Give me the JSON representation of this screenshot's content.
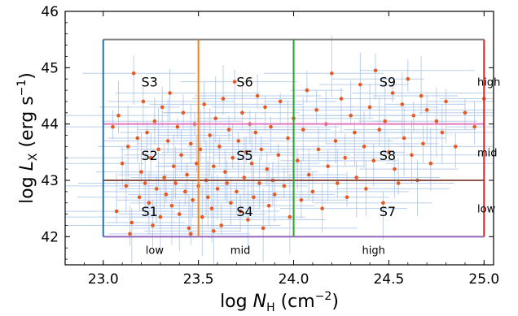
{
  "chart_data": {
    "type": "scatter",
    "title": "",
    "xlabel": "log N_H (cm^-2)",
    "ylabel": "log L_X (erg s^-1)",
    "xlim": [
      22.8,
      25.05
    ],
    "ylim": [
      41.5,
      46.0
    ],
    "xticks": [
      23.0,
      23.5,
      24.0,
      24.5,
      25.0
    ],
    "yticks": [
      42,
      43,
      44,
      45,
      46
    ],
    "xtick_labels": [
      "23.0",
      "23.5",
      "24.0",
      "24.5",
      "25.0"
    ],
    "ytick_labels": [
      "42",
      "43",
      "44",
      "45",
      "46"
    ],
    "grid": false,
    "legend": "none",
    "colors": {
      "points": "#e8581f",
      "errorbars": "#aec7e8",
      "blue_line": "#1f77b4",
      "orange_line": "#ff7f0e",
      "green_line": "#2ca02c",
      "red_line": "#d62728",
      "purple_line": "#9467bd",
      "brown_line": "#8c564b",
      "pink_line": "#e377c2",
      "gray_line": "#7f7f7f"
    },
    "boundaries": {
      "vertical": [
        {
          "x": 23.0,
          "y_range": [
            42.0,
            45.5
          ],
          "color": "#1f77b4"
        },
        {
          "x": 23.5,
          "y_range": [
            42.0,
            45.5
          ],
          "color": "#ff7f0e"
        },
        {
          "x": 24.0,
          "y_range": [
            42.0,
            45.5
          ],
          "color": "#2ca02c"
        },
        {
          "x": 25.0,
          "y_range": [
            42.0,
            45.5
          ],
          "color": "#d62728"
        }
      ],
      "horizontal": [
        {
          "y": 42.0,
          "x_range": [
            23.0,
            25.0
          ],
          "color": "#9467bd"
        },
        {
          "y": 43.0,
          "x_range": [
            23.0,
            25.0
          ],
          "color": "#8c564b"
        },
        {
          "y": 44.0,
          "x_range": [
            23.0,
            25.0
          ],
          "color": "#e377c2"
        },
        {
          "y": 45.5,
          "x_range": [
            23.0,
            25.0
          ],
          "color": "#7f7f7f"
        }
      ]
    },
    "region_labels": [
      {
        "text": "S1",
        "x": 23.2,
        "y": 42.45
      },
      {
        "text": "S2",
        "x": 23.2,
        "y": 43.45
      },
      {
        "text": "S3",
        "x": 23.2,
        "y": 44.75
      },
      {
        "text": "S4",
        "x": 23.7,
        "y": 42.45
      },
      {
        "text": "S5",
        "x": 23.7,
        "y": 43.45
      },
      {
        "text": "S6",
        "x": 23.7,
        "y": 44.75
      },
      {
        "text": "S7",
        "x": 24.45,
        "y": 42.45
      },
      {
        "text": "S8",
        "x": 24.45,
        "y": 43.45
      },
      {
        "text": "S9",
        "x": 24.45,
        "y": 44.75
      }
    ],
    "x_bin_labels": [
      {
        "text": "low",
        "x": 23.27,
        "y": 41.75
      },
      {
        "text": "mid",
        "x": 23.72,
        "y": 41.75
      },
      {
        "text": "high",
        "x": 24.42,
        "y": 41.75
      }
    ],
    "y_bin_labels": [
      {
        "text": "high",
        "y": 44.75
      },
      {
        "text": "mid",
        "y": 43.5
      },
      {
        "text": "low",
        "y": 42.5
      }
    ],
    "series": [
      {
        "points": [
          [
            23.05,
            43.95
          ],
          [
            23.07,
            42.45
          ],
          [
            23.08,
            44.15
          ],
          [
            23.1,
            43.3
          ],
          [
            23.12,
            42.9
          ],
          [
            23.13,
            43.6
          ],
          [
            23.15,
            42.25
          ],
          [
            23.16,
            44.9
          ],
          [
            23.18,
            43.75
          ],
          [
            23.19,
            42.7
          ],
          [
            23.2,
            43.15
          ],
          [
            23.21,
            44.4
          ],
          [
            23.22,
            42.95
          ],
          [
            23.23,
            43.85
          ],
          [
            23.24,
            42.6
          ],
          [
            23.25,
            43.4
          ],
          [
            23.27,
            44.05
          ],
          [
            23.28,
            42.85
          ],
          [
            23.29,
            43.55
          ],
          [
            23.3,
            42.35
          ],
          [
            23.31,
            44.3
          ],
          [
            23.32,
            43.05
          ],
          [
            23.33,
            42.75
          ],
          [
            23.34,
            43.7
          ],
          [
            23.35,
            44.55
          ],
          [
            23.36,
            42.55
          ],
          [
            23.37,
            43.25
          ],
          [
            23.38,
            42.95
          ],
          [
            23.39,
            43.95
          ],
          [
            23.4,
            42.4
          ],
          [
            23.41,
            43.45
          ],
          [
            23.42,
            44.2
          ],
          [
            23.43,
            42.8
          ],
          [
            23.44,
            43.1
          ],
          [
            23.45,
            42.15
          ],
          [
            23.46,
            43.65
          ],
          [
            23.47,
            42.65
          ],
          [
            23.48,
            44.0
          ],
          [
            23.49,
            43.3
          ],
          [
            23.5,
            42.9
          ],
          [
            23.51,
            43.55
          ],
          [
            23.52,
            42.35
          ],
          [
            23.53,
            44.35
          ],
          [
            23.54,
            43.0
          ],
          [
            23.55,
            42.7
          ],
          [
            23.56,
            43.8
          ],
          [
            23.57,
            42.5
          ],
          [
            23.58,
            43.25
          ],
          [
            23.59,
            44.1
          ],
          [
            23.6,
            42.85
          ],
          [
            23.61,
            43.6
          ],
          [
            23.62,
            42.2
          ],
          [
            23.63,
            44.45
          ],
          [
            23.64,
            43.15
          ],
          [
            23.65,
            42.95
          ],
          [
            23.66,
            43.9
          ],
          [
            23.67,
            42.6
          ],
          [
            23.68,
            43.4
          ],
          [
            23.69,
            44.75
          ],
          [
            23.7,
            42.8
          ],
          [
            23.71,
            43.7
          ],
          [
            23.72,
            42.45
          ],
          [
            23.73,
            44.2
          ],
          [
            23.74,
            43.05
          ],
          [
            23.75,
            43.5
          ],
          [
            23.76,
            42.3
          ],
          [
            23.77,
            44.0
          ],
          [
            23.78,
            43.3
          ],
          [
            23.79,
            42.7
          ],
          [
            23.8,
            43.85
          ],
          [
            23.81,
            44.5
          ],
          [
            23.82,
            42.95
          ],
          [
            23.83,
            43.55
          ],
          [
            23.84,
            42.15
          ],
          [
            23.85,
            44.3
          ],
          [
            23.86,
            43.2
          ],
          [
            23.87,
            42.55
          ],
          [
            23.88,
            43.95
          ],
          [
            23.89,
            43.0
          ],
          [
            23.9,
            42.75
          ],
          [
            23.92,
            43.45
          ],
          [
            23.93,
            44.4
          ],
          [
            23.95,
            42.9
          ],
          [
            23.97,
            43.75
          ],
          [
            23.98,
            42.35
          ],
          [
            24.0,
            44.1
          ],
          [
            24.02,
            43.35
          ],
          [
            24.04,
            42.65
          ],
          [
            24.05,
            43.9
          ],
          [
            24.07,
            44.6
          ],
          [
            24.08,
            43.1
          ],
          [
            24.1,
            42.8
          ],
          [
            24.12,
            44.25
          ],
          [
            24.13,
            43.55
          ],
          [
            24.15,
            42.5
          ],
          [
            24.17,
            44.0
          ],
          [
            24.18,
            43.25
          ],
          [
            24.2,
            44.9
          ],
          [
            24.22,
            43.7
          ],
          [
            24.23,
            42.95
          ],
          [
            24.25,
            44.45
          ],
          [
            24.27,
            43.4
          ],
          [
            24.28,
            42.7
          ],
          [
            24.3,
            44.15
          ],
          [
            24.32,
            43.85
          ],
          [
            24.33,
            43.05
          ],
          [
            24.35,
            44.7
          ],
          [
            24.37,
            43.6
          ],
          [
            24.38,
            42.85
          ],
          [
            24.4,
            44.3
          ],
          [
            24.42,
            43.35
          ],
          [
            24.43,
            44.95
          ],
          [
            24.45,
            43.9
          ],
          [
            24.47,
            42.6
          ],
          [
            24.48,
            44.05
          ],
          [
            24.5,
            43.5
          ],
          [
            24.52,
            44.55
          ],
          [
            24.53,
            43.2
          ],
          [
            24.55,
            42.95
          ],
          [
            24.57,
            44.35
          ],
          [
            24.58,
            43.75
          ],
          [
            24.6,
            44.8
          ],
          [
            24.62,
            43.45
          ],
          [
            24.63,
            44.15
          ],
          [
            24.65,
            43.0
          ],
          [
            24.67,
            44.5
          ],
          [
            24.68,
            43.65
          ],
          [
            24.7,
            44.25
          ],
          [
            24.72,
            43.3
          ],
          [
            24.75,
            44.05
          ],
          [
            24.78,
            43.85
          ],
          [
            24.8,
            44.4
          ],
          [
            24.85,
            43.6
          ],
          [
            24.9,
            44.2
          ],
          [
            24.95,
            43.95
          ],
          [
            25.0,
            44.45
          ],
          [
            23.14,
            42.05
          ],
          [
            23.46,
            42.05
          ],
          [
            23.26,
            42.2
          ],
          [
            23.58,
            42.1
          ]
        ]
      }
    ]
  }
}
